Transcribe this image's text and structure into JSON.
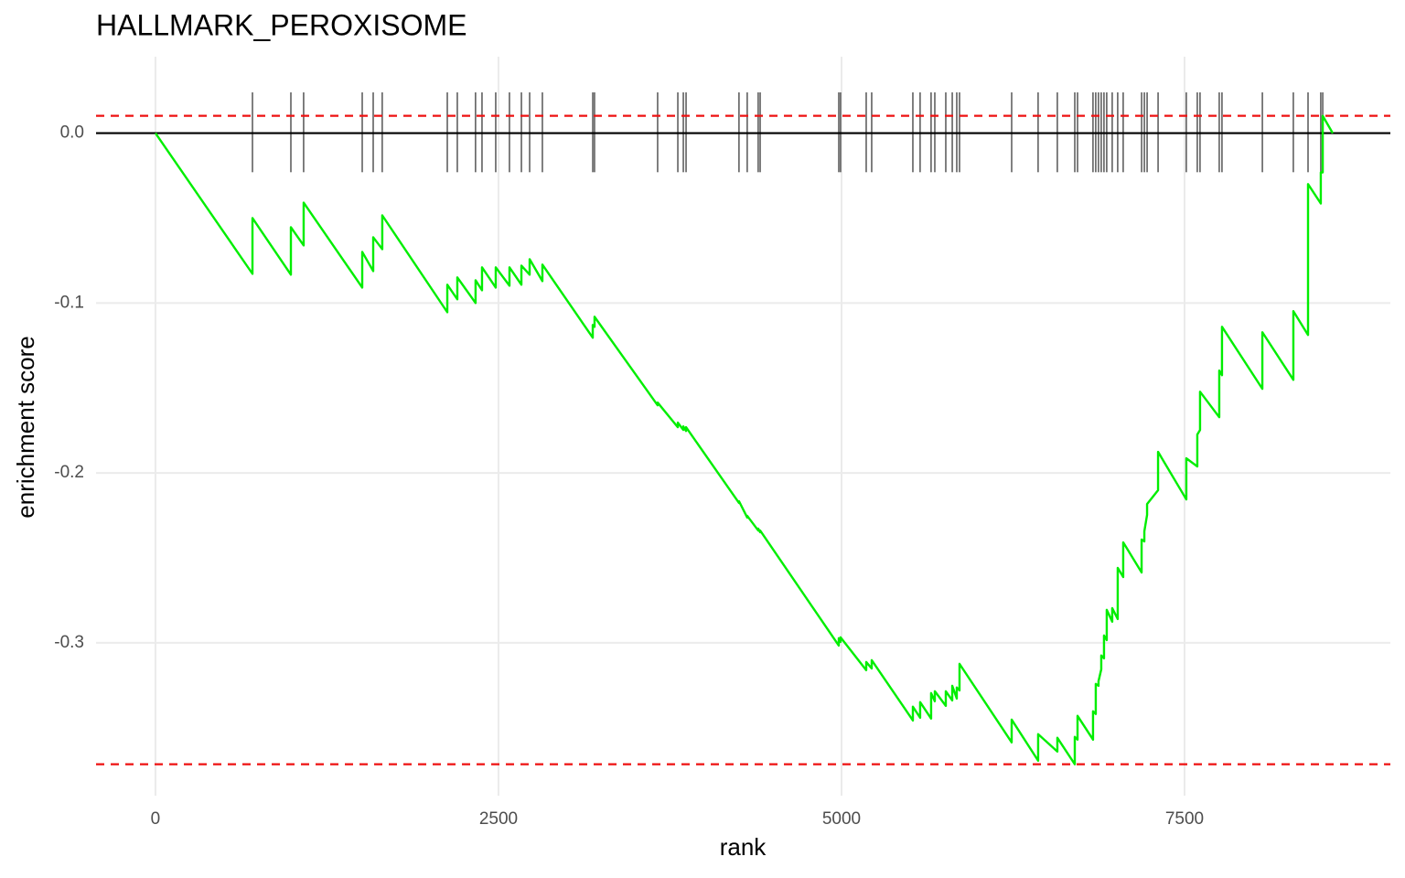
{
  "chart_data": {
    "type": "line",
    "title": "HALLMARK_PEROXISOME",
    "x_label": "rank",
    "y_label": "enrichment score",
    "xlim": [
      -433,
      9000
    ],
    "ylim": [
      -0.39,
      0.045
    ],
    "xticks": [
      0,
      2500,
      5000,
      7500
    ],
    "yticks": [
      {
        "value": 0,
        "label": "0.0"
      },
      -0.1,
      -0.2,
      -0.3
    ],
    "grid": true,
    "series": [
      {
        "color": "#00ee00",
        "x": [
          0,
          707,
          707,
          987,
          987,
          1080,
          1080,
          1507,
          1507,
          1587,
          1587,
          1653,
          1653,
          2127,
          2127,
          2200,
          2200,
          2333,
          2333,
          2380,
          2380,
          2480,
          2480,
          2580,
          2580,
          2667,
          2667,
          2727,
          2727,
          2820,
          2820,
          3187,
          3187,
          3200,
          3200,
          3660,
          3660,
          3807,
          3807,
          3847,
          3847,
          3867,
          3867,
          4253,
          4253,
          4313,
          4313,
          4393,
          4393,
          4407,
          4407,
          4980,
          4980,
          4993,
          4993,
          5180,
          5180,
          5220,
          5220,
          5520,
          5520,
          5573,
          5573,
          5653,
          5653,
          5680,
          5680,
          5760,
          5760,
          5807,
          5807,
          5840,
          5840,
          5860,
          5860,
          6240,
          6240,
          6433,
          6433,
          6573,
          6573,
          6700,
          6700,
          6720,
          6720,
          6833,
          6833,
          6853,
          6853,
          6873,
          6873,
          6893,
          6893,
          6913,
          6913,
          6933,
          6933,
          6973,
          6973,
          7013,
          7013,
          7053,
          7053,
          7187,
          7187,
          7207,
          7207,
          7227,
          7227,
          7307,
          7307,
          7513,
          7513,
          7593,
          7593,
          7613,
          7613,
          7753,
          7753,
          7773,
          7773,
          8067,
          8067,
          8293,
          8293,
          8400,
          8400,
          8493,
          8493,
          8507,
          8507,
          8580
        ],
        "values": [
          0,
          -0.0828,
          -0.05,
          -0.0833,
          -0.0554,
          -0.0661,
          -0.0409,
          -0.0909,
          -0.0699,
          -0.0812,
          -0.0613,
          -0.0683,
          -0.0484,
          -0.1054,
          -0.0892,
          -0.0978,
          -0.0849,
          -0.1,
          -0.0866,
          -0.0925,
          -0.079,
          -0.0909,
          -0.079,
          -0.0898,
          -0.079,
          -0.0892,
          -0.078,
          -0.0833,
          -0.0742,
          -0.0871,
          -0.0774,
          -0.1204,
          -0.1129,
          -0.114,
          -0.1081,
          -0.1602,
          -0.1586,
          -0.1731,
          -0.1704,
          -0.1747,
          -0.1726,
          -0.1753,
          -0.1731,
          -0.2177,
          -0.2167,
          -0.2263,
          -0.2253,
          -0.2339,
          -0.2328,
          -0.2349,
          -0.2339,
          -0.3016,
          -0.2973,
          -0.2995,
          -0.2968,
          -0.3161,
          -0.3113,
          -0.3151,
          -0.3102,
          -0.3457,
          -0.3376,
          -0.3441,
          -0.3349,
          -0.3446,
          -0.3296,
          -0.3344,
          -0.3285,
          -0.3371,
          -0.3285,
          -0.3339,
          -0.3253,
          -0.3328,
          -0.3263,
          -0.328,
          -0.3124,
          -0.3586,
          -0.3452,
          -0.3694,
          -0.3538,
          -0.364,
          -0.3559,
          -0.3715,
          -0.3554,
          -0.357,
          -0.343,
          -0.357,
          -0.3403,
          -0.3419,
          -0.3242,
          -0.3253,
          -0.3226,
          -0.3156,
          -0.3075,
          -0.3091,
          -0.2957,
          -0.2984,
          -0.2806,
          -0.2876,
          -0.2796,
          -0.286,
          -0.2559,
          -0.2613,
          -0.2409,
          -0.2586,
          -0.2392,
          -0.2403,
          -0.2344,
          -0.2247,
          -0.2183,
          -0.2102,
          -0.1876,
          -0.2156,
          -0.1914,
          -0.1962,
          -0.1774,
          -0.1747,
          -0.1522,
          -0.1672,
          -0.1398,
          -0.1425,
          -0.114,
          -0.1505,
          -0.1172,
          -0.1452,
          -0.1048,
          -0.1188,
          -0.03,
          -0.0414,
          -0.0231,
          -0.0231,
          0.0102,
          0
        ]
      }
    ],
    "hits": {
      "color": "#000000",
      "ymin": -0.023,
      "ymax": 0.024,
      "x": [
        707,
        987,
        1080,
        1507,
        1587,
        1653,
        2127,
        2200,
        2333,
        2380,
        2480,
        2580,
        2667,
        2727,
        2820,
        3187,
        3200,
        3660,
        3807,
        3847,
        3867,
        4253,
        4313,
        4393,
        4407,
        4980,
        4993,
        5180,
        5220,
        5520,
        5573,
        5653,
        5680,
        5760,
        5807,
        5840,
        5860,
        6240,
        6433,
        6573,
        6700,
        6720,
        6833,
        6853,
        6873,
        6893,
        6913,
        6933,
        6973,
        7013,
        7053,
        7187,
        7207,
        7227,
        7307,
        7513,
        7593,
        7613,
        7753,
        7773,
        8067,
        8293,
        8400,
        8493,
        8507
      ]
    },
    "hlines": [
      {
        "value": 0.0102,
        "color": "#ee1111",
        "dash": true
      },
      {
        "value": -0.3715,
        "color": "#ee1111",
        "dash": true
      },
      {
        "value": 0,
        "color": "#000000",
        "dash": false
      }
    ]
  }
}
